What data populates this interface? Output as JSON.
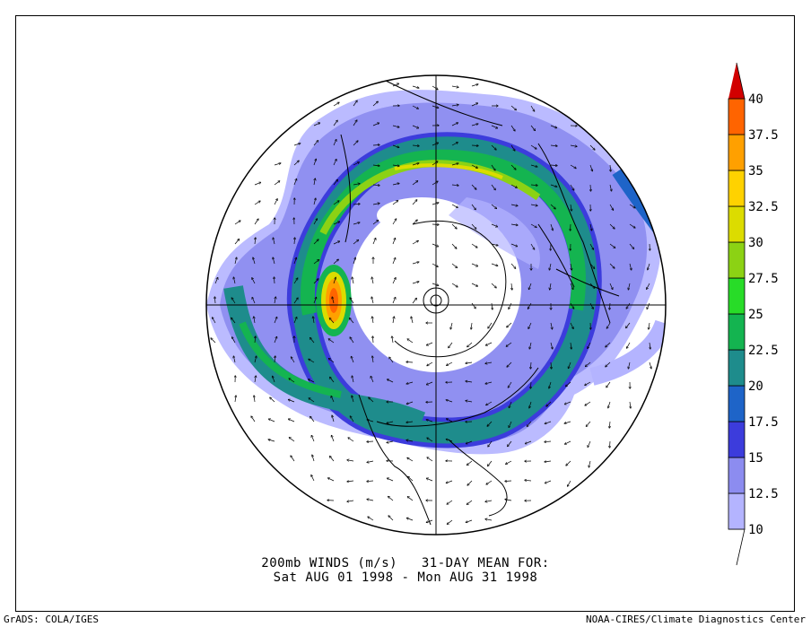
{
  "caption": {
    "line1": "200mb WINDS (m/s)   31-DAY MEAN FOR:",
    "line2": "Sat AUG 01 1998 - Mon AUG 31 1998"
  },
  "footer": {
    "left": "GrADS: COLA/IGES",
    "right": "NOAA-CIRES/Climate Diagnostics Center"
  },
  "colorbar": {
    "levels": [
      "10",
      "12.5",
      "15",
      "17.5",
      "20",
      "22.5",
      "25",
      "27.5",
      "30",
      "32.5",
      "35",
      "37.5",
      "40"
    ],
    "colors": [
      "#ffffff",
      "#b4b4ff",
      "#8c8cf0",
      "#3c3cdc",
      "#1e64c8",
      "#1e8c8c",
      "#14b450",
      "#28dc28",
      "#8cd214",
      "#dcdc00",
      "#ffd200",
      "#ffa000",
      "#ff6400",
      "#d20000"
    ]
  }
}
